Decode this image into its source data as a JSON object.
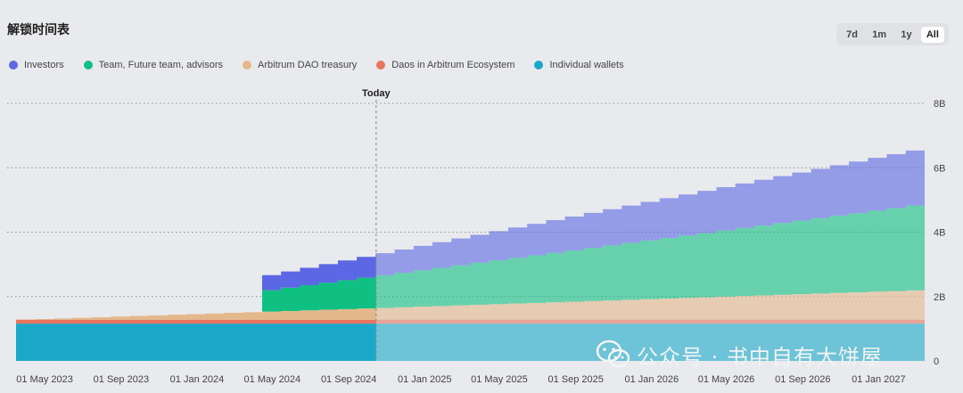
{
  "title": "解锁时间表",
  "range_buttons": [
    {
      "label": "7d",
      "active": false
    },
    {
      "label": "1m",
      "active": false
    },
    {
      "label": "1y",
      "active": false
    },
    {
      "label": "All",
      "active": true
    }
  ],
  "watermark": "公众号 · 书中自有大饼屋",
  "chart_data": {
    "type": "area",
    "stacked": true,
    "step": true,
    "title": "",
    "xlabel": "",
    "ylabel": "",
    "x_axis": "date",
    "ylim": [
      0,
      8
    ],
    "y_unit": "B",
    "xlim": [
      "2023-03-16",
      "2027-03-16"
    ],
    "today": {
      "label": "Today",
      "date": "2024-10-15"
    },
    "y_ticks": [
      {
        "value": 0,
        "label": "0"
      },
      {
        "value": 2,
        "label": "2B"
      },
      {
        "value": 4,
        "label": "4B"
      },
      {
        "value": 6,
        "label": "6B"
      },
      {
        "value": 8,
        "label": "8B"
      }
    ],
    "x_ticks": [
      {
        "date": "2023-05-01",
        "label": "01 May 2023"
      },
      {
        "date": "2023-09-01",
        "label": "01 Sep 2023"
      },
      {
        "date": "2024-01-01",
        "label": "01 Jan 2024"
      },
      {
        "date": "2024-05-01",
        "label": "01 May 2024"
      },
      {
        "date": "2024-09-01",
        "label": "01 Sep 2024"
      },
      {
        "date": "2025-01-01",
        "label": "01 Jan 2025"
      },
      {
        "date": "2025-05-01",
        "label": "01 May 2025"
      },
      {
        "date": "2025-09-01",
        "label": "01 Sep 2025"
      },
      {
        "date": "2026-01-01",
        "label": "01 Jan 2026"
      },
      {
        "date": "2026-05-01",
        "label": "01 May 2026"
      },
      {
        "date": "2026-09-01",
        "label": "01 Sep 2026"
      },
      {
        "date": "2027-01-01",
        "label": "01 Jan 2027"
      }
    ],
    "grid": true,
    "legend_position": "top-left",
    "series": [
      {
        "name": "Individual wallets",
        "color": "#1aa8c8",
        "kind": "constant",
        "start": "2023-03-16",
        "end": "2027-03-16",
        "value": 1.16
      },
      {
        "name": "Daos in Arbitrum Ecosystem",
        "color": "#e8735e",
        "kind": "constant",
        "start": "2023-03-16",
        "end": "2027-03-16",
        "value": 0.12
      },
      {
        "name": "Arbitrum DAO treasury",
        "color": "#e3b88a",
        "kind": "linear",
        "start": "2023-03-16",
        "end": "2027-03-16",
        "start_value": 0.0,
        "end_value": 0.93
      },
      {
        "name": "Team, Future team, advisors",
        "color": "#10bf82",
        "kind": "monthly",
        "start": "2024-03-16",
        "end": "2027-03-16",
        "cliff_value": 0.61,
        "end_value": 2.69
      },
      {
        "name": "Investors",
        "color": "#5b67e4",
        "kind": "monthly",
        "start": "2024-03-16",
        "end": "2027-03-16",
        "cliff_value": 0.43,
        "end_value": 1.75
      }
    ],
    "legend_order": [
      "Investors",
      "Team, Future team, advisors",
      "Arbitrum DAO treasury",
      "Daos in Arbitrum Ecosystem",
      "Individual wallets"
    ]
  }
}
